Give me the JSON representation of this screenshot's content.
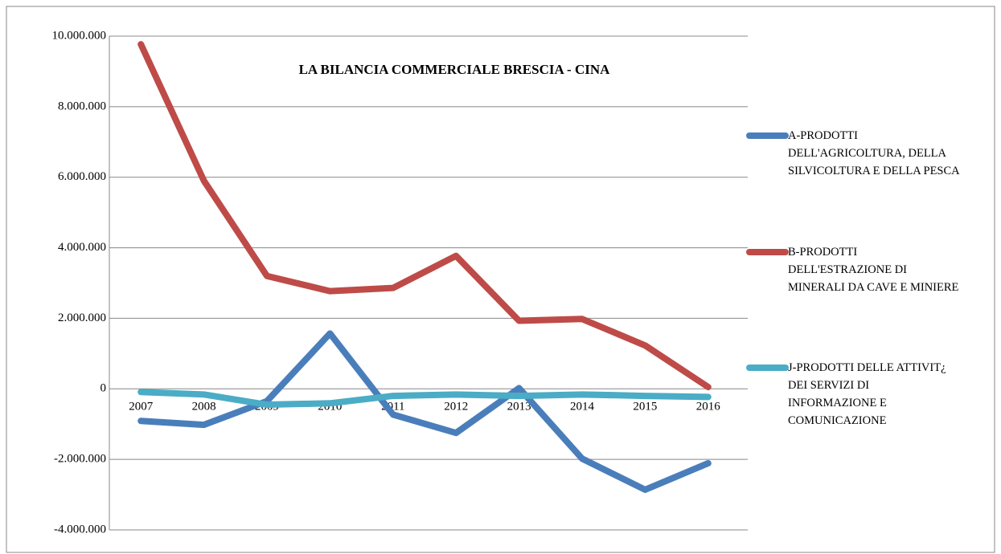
{
  "chart_data": {
    "type": "line",
    "title": "LA BILANCIA COMMERCIALE BRESCIA - CINA",
    "categories": [
      "2007",
      "2008",
      "2009",
      "2010",
      "2011",
      "2012",
      "2013",
      "2014",
      "2015",
      "2016"
    ],
    "series": [
      {
        "name": "A-PRODOTTI DELL'AGRICOLTURA, DELLA SILVICOLTURA E DELLA PESCA",
        "color": "#4a7ebb",
        "values": [
          -910000,
          -1020000,
          -350000,
          1570000,
          -730000,
          -1250000,
          20000,
          -1980000,
          -2860000,
          -2110000
        ]
      },
      {
        "name": "B-PRODOTTI DELL'ESTRAZIONE DI MINERALI DA CAVE E MINIERE",
        "color": "#be4b48",
        "values": [
          9770000,
          5900000,
          3200000,
          2770000,
          2860000,
          3770000,
          1930000,
          1980000,
          1230000,
          50000
        ]
      },
      {
        "name": "J-PRODOTTI DELLE ATTIVIT¿ DEI SERVIZI DI INFORMAZIONE E COMUNICAZIONE",
        "color": "#4bacc6",
        "values": [
          -90000,
          -160000,
          -450000,
          -410000,
          -200000,
          -160000,
          -200000,
          -160000,
          -200000,
          -230000
        ]
      }
    ],
    "ylim": [
      -4000000,
      10000000
    ],
    "yticks": [
      {
        "value": -4000000,
        "label": "-4.000.000"
      },
      {
        "value": -2000000,
        "label": "-2.000.000"
      },
      0,
      {
        "value": 2000000,
        "label": "2.000.000"
      },
      {
        "value": 4000000,
        "label": "4.000.000"
      },
      {
        "value": 6000000,
        "label": "6.000.000"
      },
      {
        "value": 8000000,
        "label": "8.000.000"
      },
      {
        "value": 10000000,
        "label": "10.000.000"
      }
    ],
    "grid": true,
    "legend": "right"
  }
}
